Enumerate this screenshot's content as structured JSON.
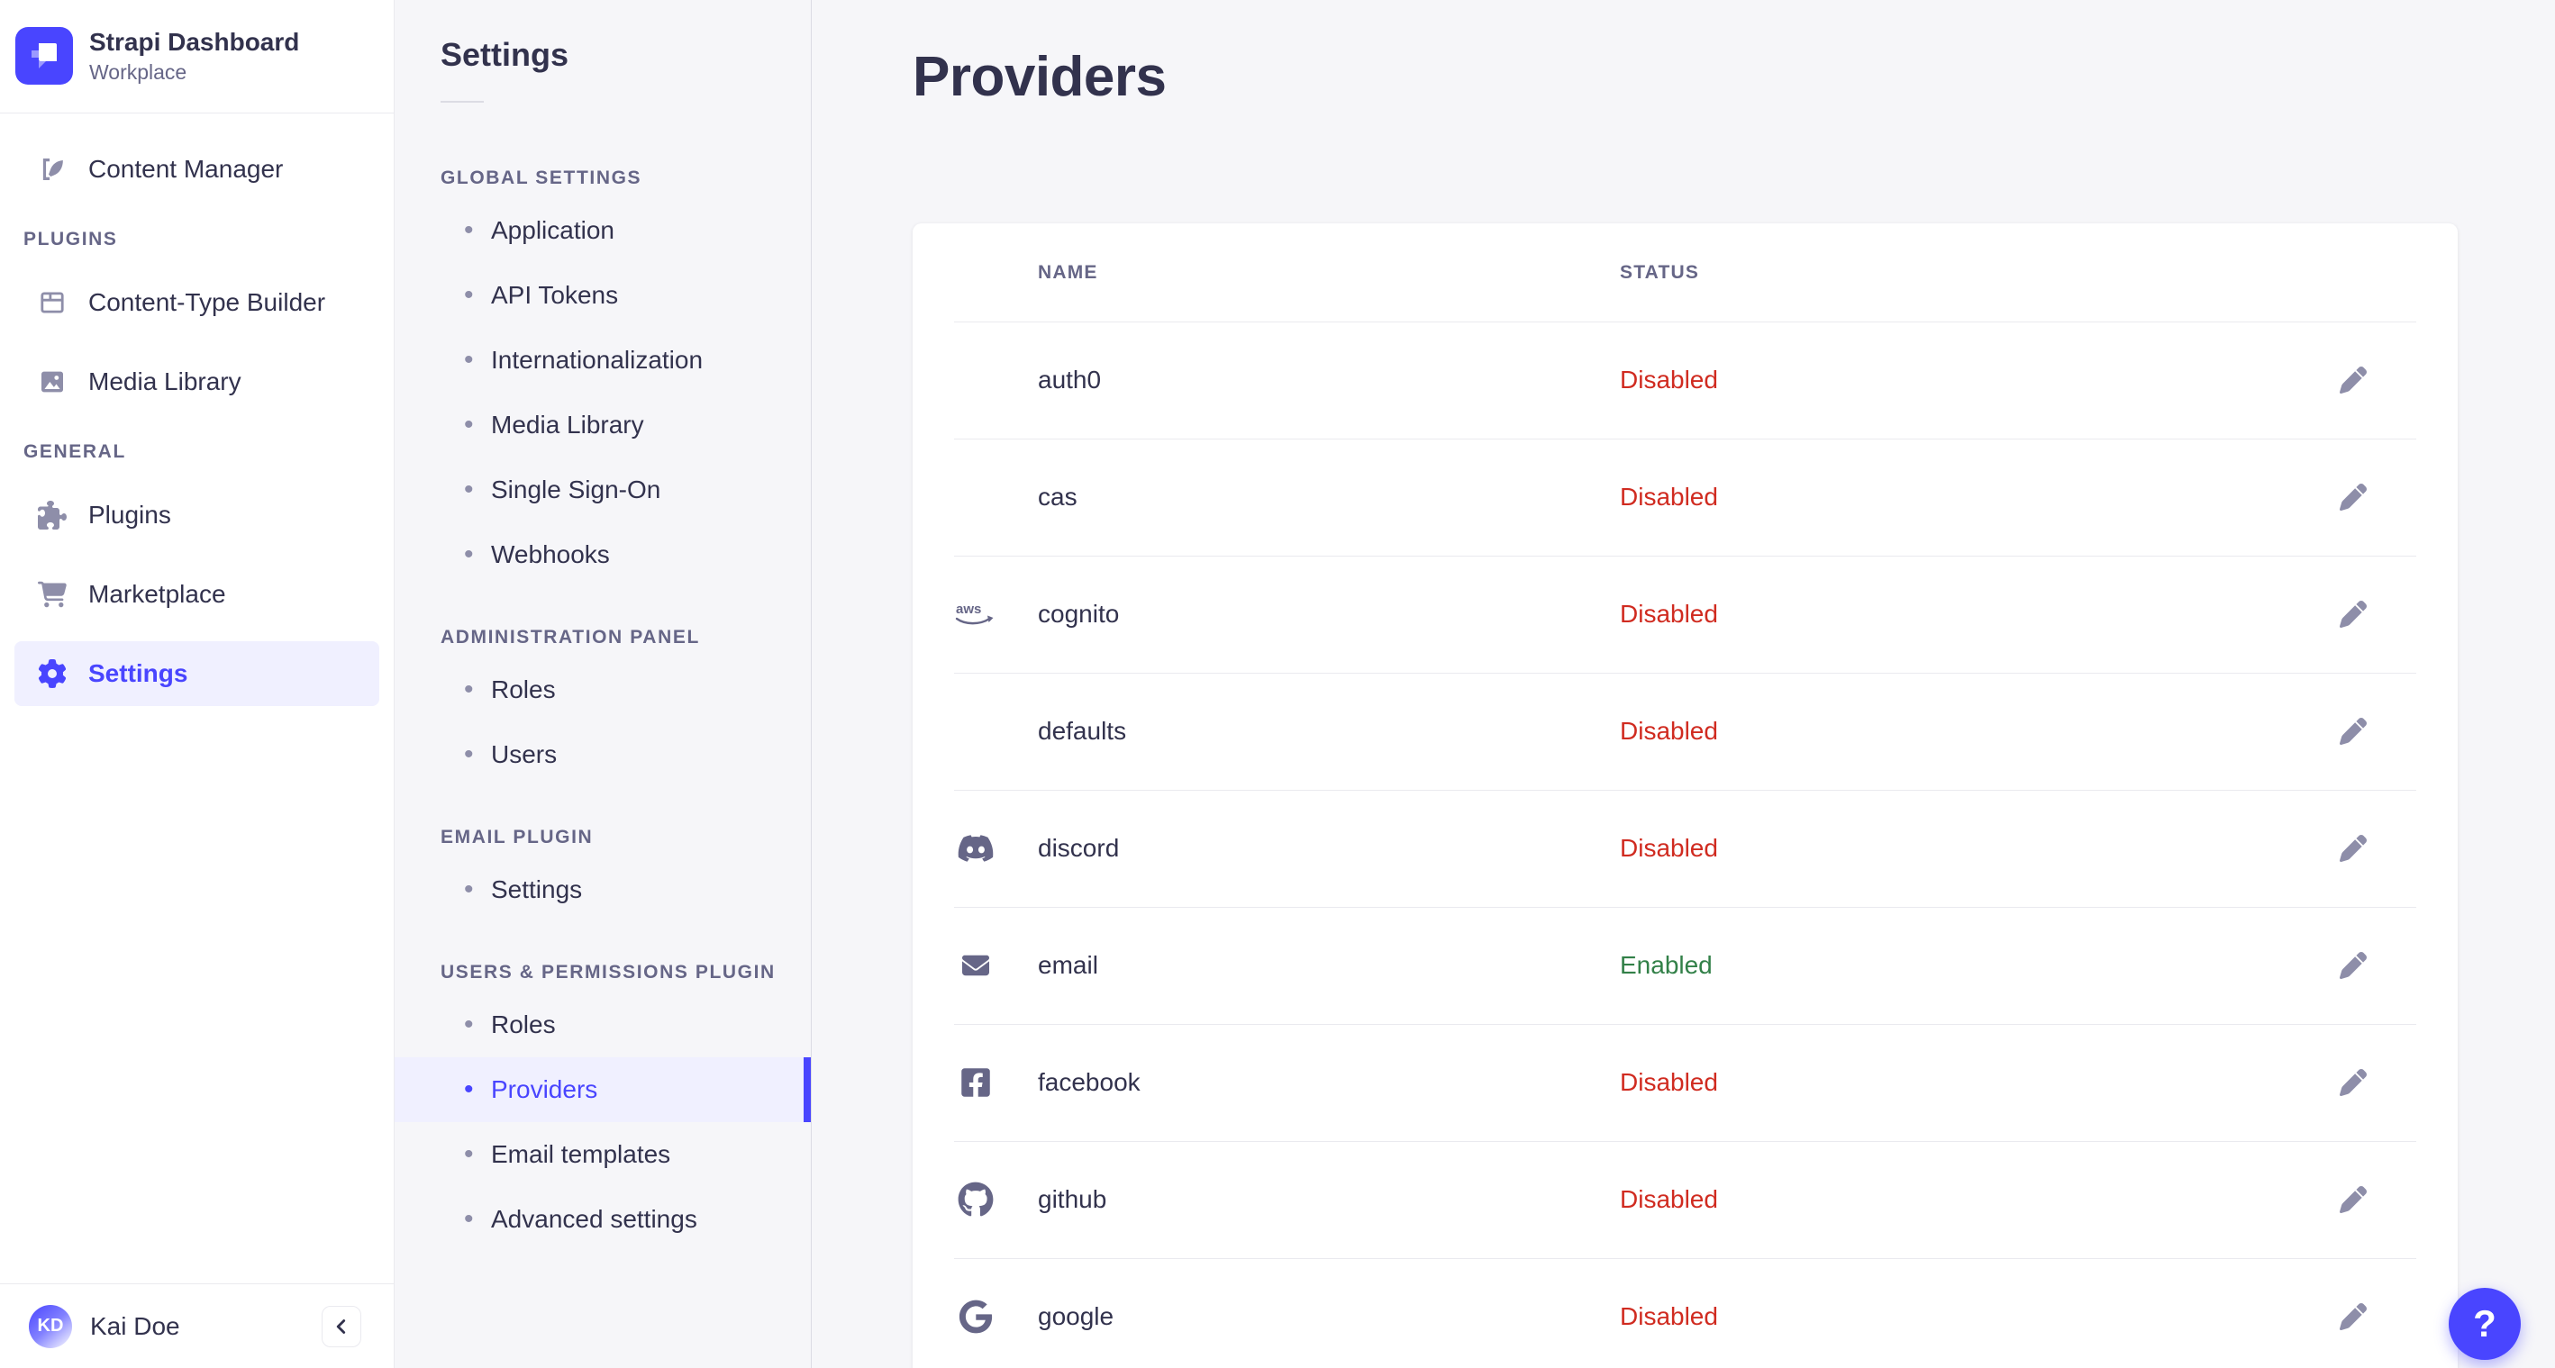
{
  "brand": {
    "title": "Strapi Dashboard",
    "subtitle": "Workplace"
  },
  "colors": {
    "primary": "#4945FF",
    "primary_light_bg": "#F0F0FF",
    "status_enabled": "#328048",
    "status_disabled": "#D02B20"
  },
  "sidebar": {
    "sections": [
      {
        "header": null,
        "items": [
          {
            "label": "Content Manager",
            "icon": "pen-square-icon",
            "active": false
          }
        ]
      },
      {
        "header": "PLUGINS",
        "items": [
          {
            "label": "Content-Type Builder",
            "icon": "layout-grid-icon",
            "active": false
          },
          {
            "label": "Media Library",
            "icon": "picture-icon",
            "active": false
          }
        ]
      },
      {
        "header": "GENERAL",
        "items": [
          {
            "label": "Plugins",
            "icon": "puzzle-icon",
            "active": false
          },
          {
            "label": "Marketplace",
            "icon": "cart-icon",
            "active": false
          },
          {
            "label": "Settings",
            "icon": "gear-icon",
            "active": true
          }
        ]
      }
    ],
    "footer": {
      "user": "Kai Doe",
      "initials": "KD"
    }
  },
  "subnav": {
    "title": "Settings",
    "sections": [
      {
        "header": "GLOBAL SETTINGS",
        "items": [
          {
            "label": "Application",
            "active": false
          },
          {
            "label": "API Tokens",
            "active": false
          },
          {
            "label": "Internationalization",
            "active": false
          },
          {
            "label": "Media Library",
            "active": false
          },
          {
            "label": "Single Sign-On",
            "active": false
          },
          {
            "label": "Webhooks",
            "active": false
          }
        ]
      },
      {
        "header": "ADMINISTRATION PANEL",
        "items": [
          {
            "label": "Roles",
            "active": false
          },
          {
            "label": "Users",
            "active": false
          }
        ]
      },
      {
        "header": "EMAIL PLUGIN",
        "items": [
          {
            "label": "Settings",
            "active": false
          }
        ]
      },
      {
        "header": "USERS & PERMISSIONS PLUGIN",
        "items": [
          {
            "label": "Roles",
            "active": false
          },
          {
            "label": "Providers",
            "active": true
          },
          {
            "label": "Email templates",
            "active": false
          },
          {
            "label": "Advanced settings",
            "active": false
          }
        ]
      }
    ]
  },
  "main": {
    "title": "Providers",
    "table": {
      "columns": [
        "NAME",
        "STATUS"
      ],
      "rows": [
        {
          "name": "auth0",
          "icon": null,
          "status": "Disabled"
        },
        {
          "name": "cas",
          "icon": null,
          "status": "Disabled"
        },
        {
          "name": "cognito",
          "icon": "aws-icon",
          "status": "Disabled"
        },
        {
          "name": "defaults",
          "icon": null,
          "status": "Disabled"
        },
        {
          "name": "discord",
          "icon": "discord-icon",
          "status": "Disabled"
        },
        {
          "name": "email",
          "icon": "envelope-icon",
          "status": "Enabled"
        },
        {
          "name": "facebook",
          "icon": "facebook-icon",
          "status": "Disabled"
        },
        {
          "name": "github",
          "icon": "github-icon",
          "status": "Disabled"
        },
        {
          "name": "google",
          "icon": "google-icon",
          "status": "Disabled"
        }
      ]
    },
    "help_label": "?"
  }
}
